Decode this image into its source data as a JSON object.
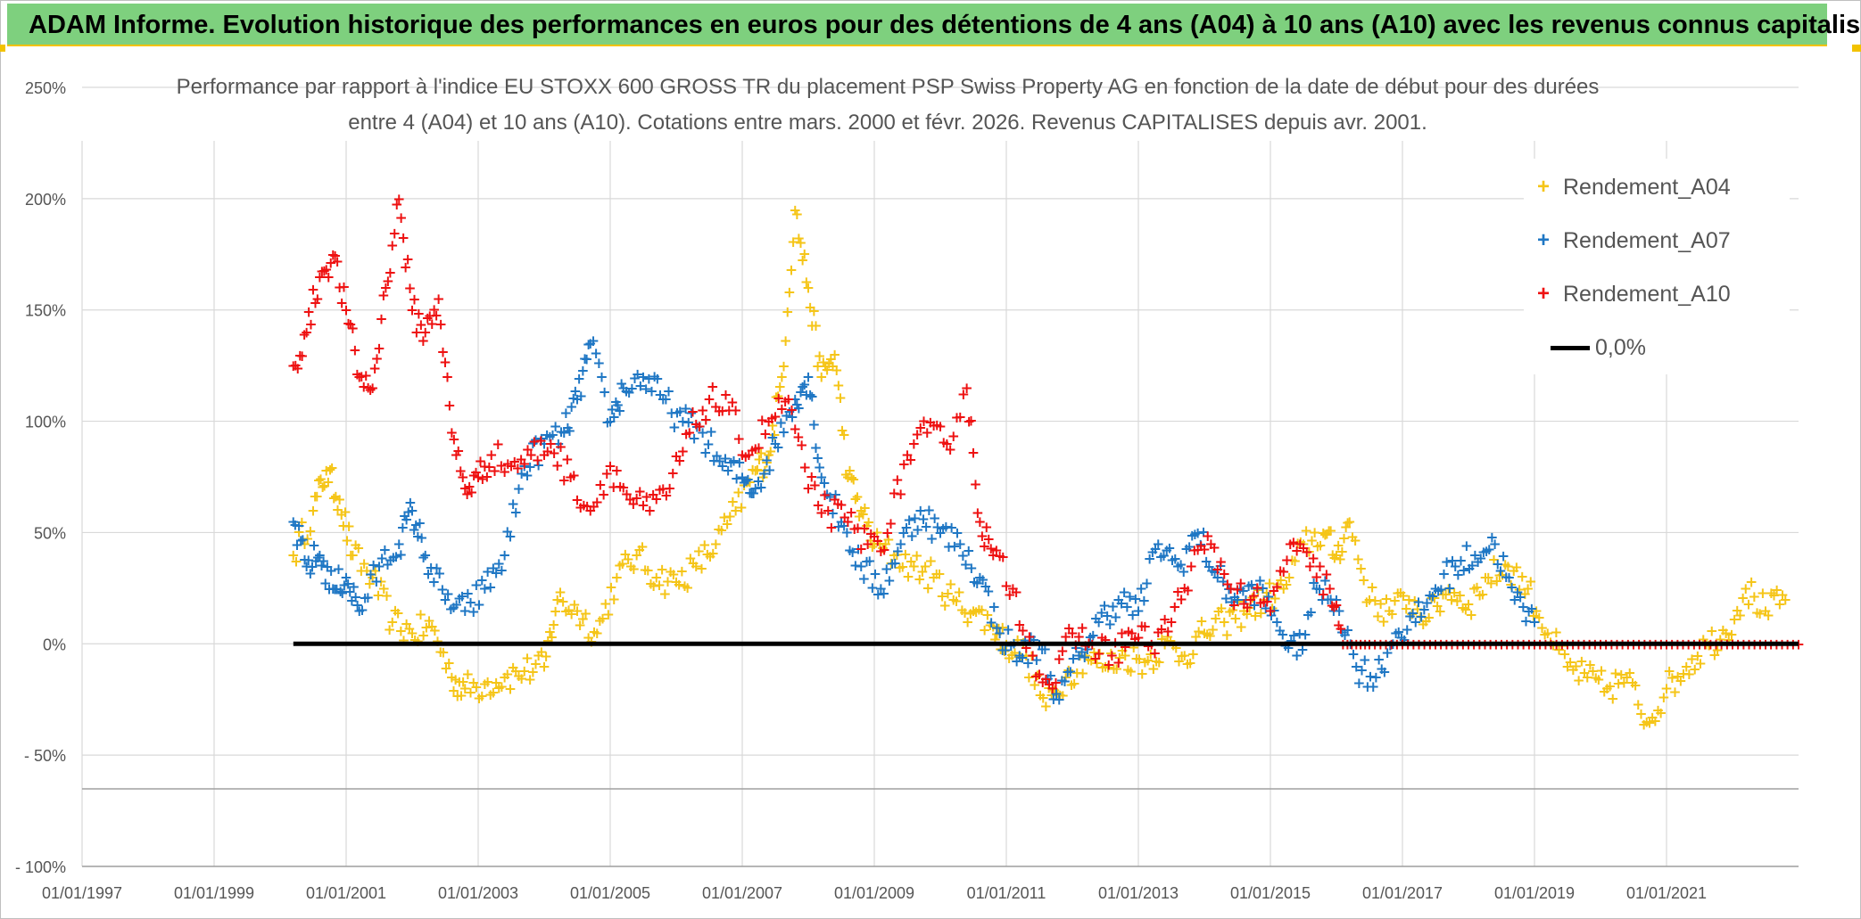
{
  "header": {
    "title": "ADAM Informe. Evolution historique des performances en euros pour des détentions de 4 ans (A04) à 10 ans (A10) avec les revenus connus capitalisés"
  },
  "chart_title": {
    "line1": "Performance par rapport à l'indice EU STOXX 600 GROSS TR  du placement PSP Swiss Property AG en fonction de la date de début pour des durées",
    "line2": "entre 4 (A04) et 10 ans (A10). Cotations entre mars. 2000 et févr. 2026. Revenus CAPITALISES depuis avr. 2001."
  },
  "legend": {
    "a04": "Rendement_A04",
    "a07": "Rendement_A07",
    "a10": "Rendement_A10",
    "zero": "0,0%"
  },
  "colors": {
    "a04": "#f5c518",
    "a07": "#1f77c4",
    "a10": "#ee1111",
    "zero": "#000000",
    "grid": "#d9d9d9",
    "banner": "#7ed07e"
  },
  "chart_data": {
    "type": "scatter",
    "title": "Performance par rapport à l'indice EU STOXX 600 GROSS TR du placement PSP Swiss Property AG",
    "xlabel": "",
    "ylabel": "",
    "xlim": [
      1997.0,
      2023.0
    ],
    "ylim": [
      -100,
      250
    ],
    "y_ticks": [
      250,
      200,
      150,
      100,
      50,
      0,
      -50,
      -100
    ],
    "y_tick_labels": [
      "250%",
      "200%",
      "150%",
      "100%",
      "50%",
      "0%",
      "- 50%",
      "- 100%"
    ],
    "x_ticks": [
      1997,
      1999,
      2001,
      2003,
      2005,
      2007,
      2009,
      2011,
      2013,
      2015,
      2017,
      2019,
      2021
    ],
    "x_tick_labels": [
      "01/01/1997",
      "01/01/1999",
      "01/01/2001",
      "01/01/2003",
      "01/01/2005",
      "01/01/2007",
      "01/01/2009",
      "01/01/2011",
      "01/01/2013",
      "01/01/2015",
      "01/01/2017",
      "01/01/2019",
      "01/01/2021"
    ],
    "series": [
      {
        "name": "Rendement_A04",
        "color": "#f5c518",
        "x": [
          2000.2,
          2000.5,
          2000.7,
          2000.9,
          2001.1,
          2001.4,
          2001.7,
          2002.0,
          2002.3,
          2002.6,
          2002.8,
          2003.1,
          2003.4,
          2003.7,
          2004.0,
          2004.2,
          2004.5,
          2004.8,
          2005.1,
          2005.4,
          2005.7,
          2006.0,
          2006.3,
          2006.6,
          2006.9,
          2007.2,
          2007.4,
          2007.6,
          2007.8,
          2008.0,
          2008.2,
          2008.4,
          2008.6,
          2008.8,
          2009.0,
          2009.3,
          2009.6,
          2009.9,
          2010.2,
          2010.5,
          2010.8,
          2011.0,
          2011.3,
          2011.6,
          2011.9,
          2012.2,
          2012.5,
          2012.8,
          2013.1,
          2013.4,
          2013.7,
          2014.0,
          2014.3,
          2014.6,
          2014.9,
          2015.2,
          2015.5,
          2015.8,
          2016.0,
          2016.2,
          2016.5,
          2016.8,
          2017.1,
          2017.4,
          2017.7,
          2018.0,
          2018.3,
          2018.6,
          2018.9,
          2019.2,
          2019.5,
          2019.8,
          2020.1,
          2020.4,
          2020.7,
          2021.0,
          2021.3,
          2021.6,
          2021.9,
          2022.2,
          2022.5,
          2022.8
        ],
        "y": [
          40,
          60,
          78,
          65,
          40,
          30,
          10,
          5,
          8,
          -15,
          -20,
          -18,
          -15,
          -12,
          -10,
          20,
          15,
          5,
          30,
          40,
          30,
          28,
          35,
          45,
          60,
          78,
          85,
          120,
          195,
          160,
          120,
          130,
          75,
          60,
          45,
          40,
          35,
          30,
          20,
          15,
          8,
          0,
          -5,
          -28,
          -15,
          -5,
          -10,
          -5,
          -8,
          0,
          -5,
          5,
          10,
          15,
          20,
          25,
          45,
          50,
          40,
          55,
          20,
          15,
          20,
          12,
          25,
          18,
          30,
          35,
          25,
          5,
          -10,
          -15,
          -20,
          -15,
          -35,
          -20,
          -10,
          0,
          5,
          25,
          15,
          20
        ]
      },
      {
        "name": "Rendement_A07",
        "color": "#1f77c4",
        "x": [
          2000.2,
          2000.4,
          2000.6,
          2000.8,
          2001.0,
          2001.2,
          2001.5,
          2001.8,
          2002.0,
          2002.2,
          2002.5,
          2002.8,
          2003.1,
          2003.4,
          2003.7,
          2004.0,
          2004.3,
          2004.5,
          2004.7,
          2005.0,
          2005.2,
          2005.5,
          2005.8,
          2006.1,
          2006.4,
          2006.7,
          2007.0,
          2007.2,
          2007.5,
          2007.8,
          2008.0,
          2008.2,
          2008.5,
          2008.8,
          2009.1,
          2009.4,
          2009.7,
          2010.0,
          2010.3,
          2010.6,
          2010.9,
          2011.2,
          2011.5,
          2011.8,
          2012.1,
          2012.4,
          2012.7,
          2013.0,
          2013.3,
          2013.6,
          2013.9,
          2014.2,
          2014.5,
          2014.8,
          2015.1,
          2015.4,
          2015.7,
          2016.0,
          2016.3,
          2016.6,
          2016.9,
          2017.2,
          2017.5,
          2017.8,
          2018.1,
          2018.4,
          2018.7,
          2019.0
        ],
        "y": [
          55,
          35,
          40,
          25,
          30,
          15,
          35,
          45,
          60,
          40,
          20,
          15,
          25,
          40,
          80,
          90,
          95,
          110,
          135,
          100,
          115,
          120,
          110,
          100,
          95,
          80,
          75,
          70,
          90,
          110,
          120,
          75,
          55,
          35,
          25,
          45,
          60,
          50,
          45,
          30,
          5,
          -5,
          0,
          -25,
          -5,
          10,
          20,
          15,
          45,
          35,
          50,
          30,
          20,
          25,
          10,
          -5,
          25,
          20,
          -10,
          -15,
          5,
          10,
          25,
          35,
          40,
          45,
          20,
          10
        ]
      },
      {
        "name": "Rendement_A10",
        "color": "#ee1111",
        "x": [
          2000.2,
          2000.4,
          2000.6,
          2000.8,
          2001.0,
          2001.2,
          2001.4,
          2001.6,
          2001.8,
          2002.0,
          2002.2,
          2002.4,
          2002.6,
          2002.8,
          2003.0,
          2003.2,
          2003.5,
          2003.8,
          2004.1,
          2004.4,
          2004.7,
          2005.0,
          2005.3,
          2005.6,
          2005.9,
          2006.2,
          2006.5,
          2006.8,
          2007.1,
          2007.4,
          2007.7,
          2008.0,
          2008.3,
          2008.6,
          2008.9,
          2009.2,
          2009.5,
          2009.8,
          2010.1,
          2010.4,
          2010.6,
          2010.8,
          2011.1,
          2011.4,
          2011.7,
          2012.0,
          2012.3,
          2012.6,
          2012.9,
          2013.2,
          2013.5,
          2013.8,
          2014.1,
          2014.4,
          2014.7,
          2015.0,
          2015.3,
          2015.6,
          2015.9,
          2016.1,
          2016.5,
          2017.0,
          2017.5,
          2018.0,
          2018.5,
          2019.0,
          2019.5,
          2020.0,
          2020.5,
          2021.0,
          2021.5,
          2022.0,
          2022.5,
          2023.0
        ],
        "y": [
          125,
          140,
          165,
          175,
          150,
          120,
          115,
          160,
          200,
          150,
          140,
          155,
          95,
          70,
          75,
          85,
          80,
          85,
          90,
          75,
          60,
          80,
          65,
          60,
          70,
          95,
          110,
          105,
          85,
          100,
          110,
          70,
          60,
          55,
          45,
          50,
          85,
          95,
          90,
          115,
          55,
          40,
          25,
          -5,
          -20,
          5,
          0,
          -5,
          5,
          0,
          10,
          35,
          45,
          25,
          20,
          15,
          45,
          35,
          25,
          0,
          0,
          0,
          0,
          0,
          0,
          0,
          0,
          0,
          0,
          0,
          0,
          0,
          0,
          0
        ]
      },
      {
        "name": "0,0%",
        "color": "#000000",
        "x": [
          2000.2,
          2023.0
        ],
        "y": [
          0,
          0
        ]
      }
    ]
  }
}
